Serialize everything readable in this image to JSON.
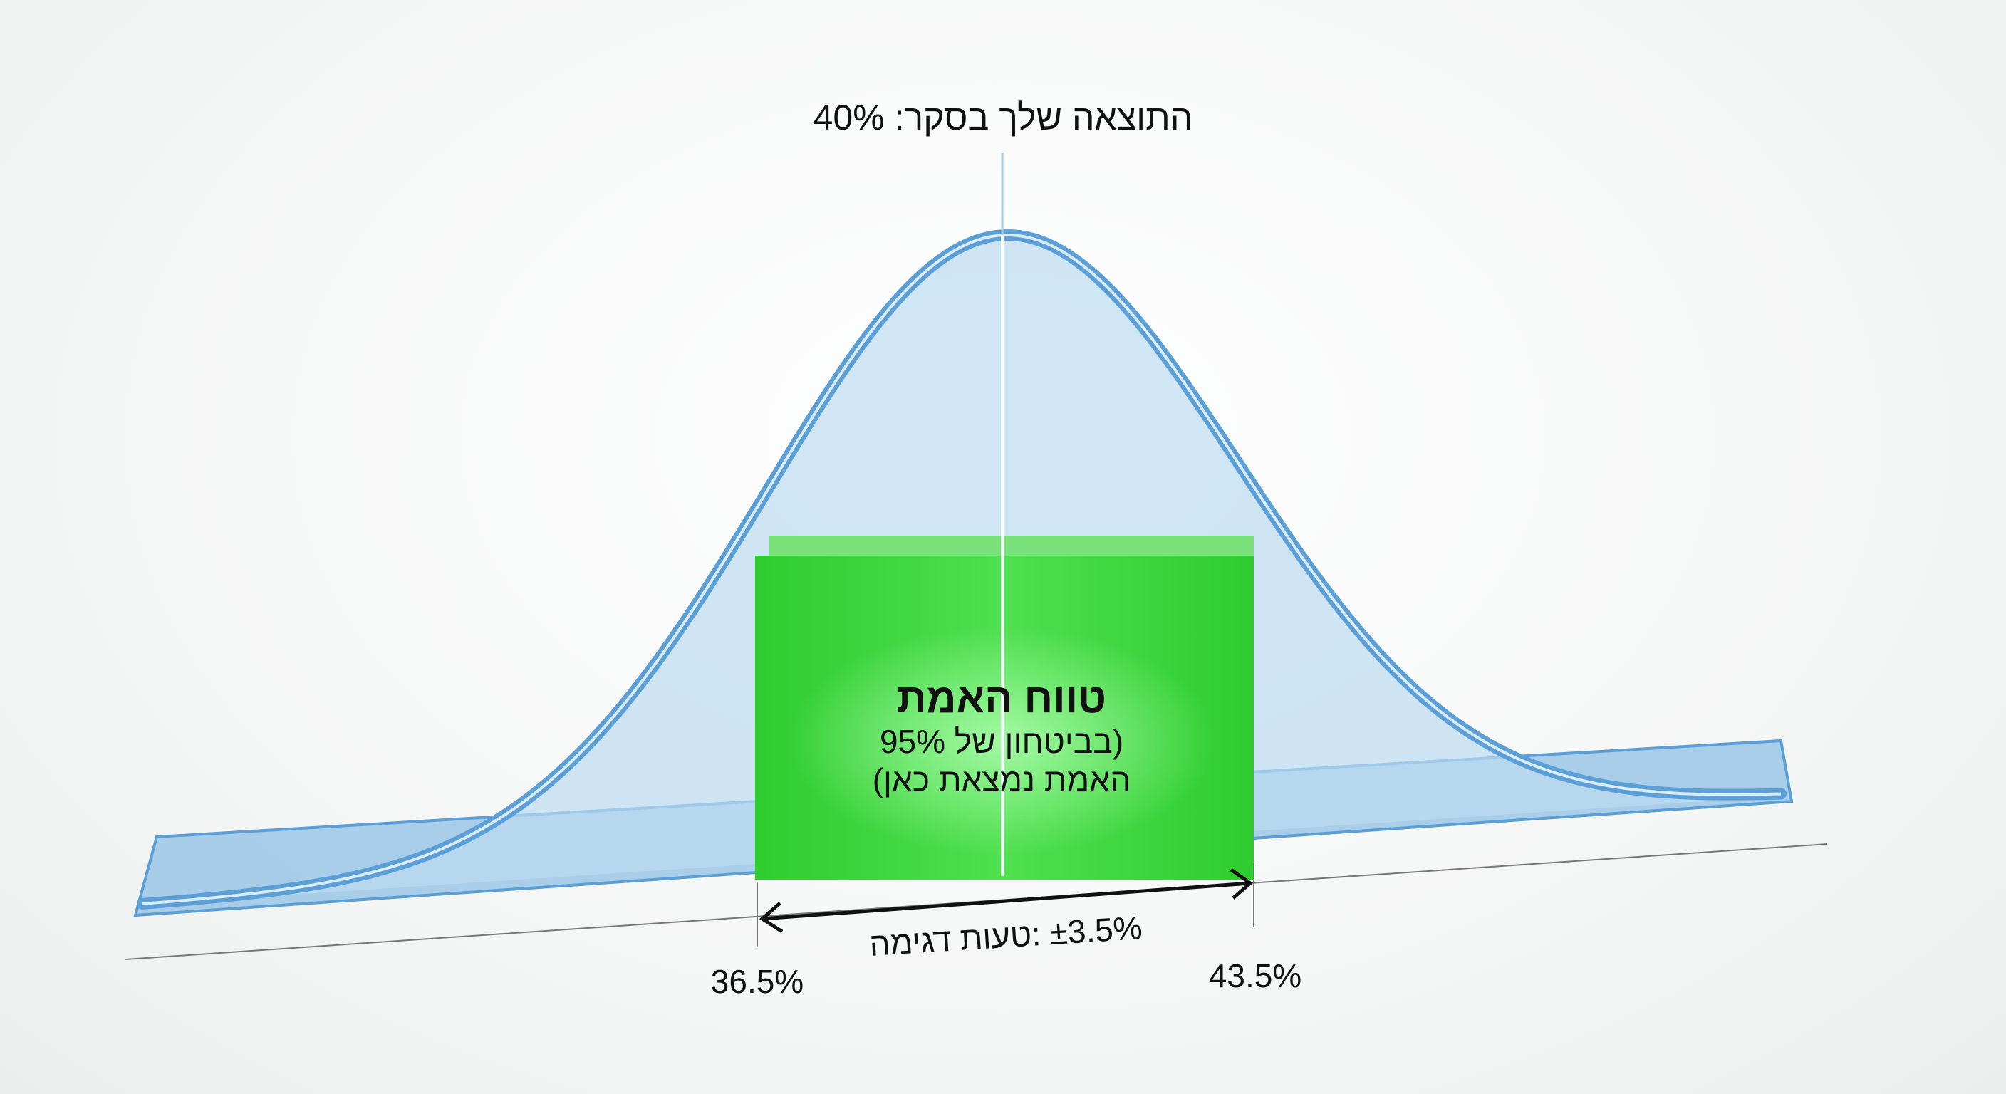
{
  "survey_result": {
    "label": "התוצאה שלך בסקר: 40%",
    "value": 40
  },
  "confidence_box": {
    "title": "טווח האמת",
    "line1": "(בביטחון של 95%",
    "line2": "האמת נמצאת כאן)",
    "confidence_level": 95
  },
  "margin_of_error": {
    "label": "±3.5% :טעות דגימה",
    "value": 3.5
  },
  "bounds": {
    "lower_label": "36.5%",
    "upper_label": "43.5%",
    "lower": 36.5,
    "upper": 43.5
  },
  "colors": {
    "curve": "#5b9fd6",
    "curve_fill": "#bcdcf0",
    "box": "#3ed63e",
    "box_top": "#7be27b",
    "text": "#111111"
  }
}
